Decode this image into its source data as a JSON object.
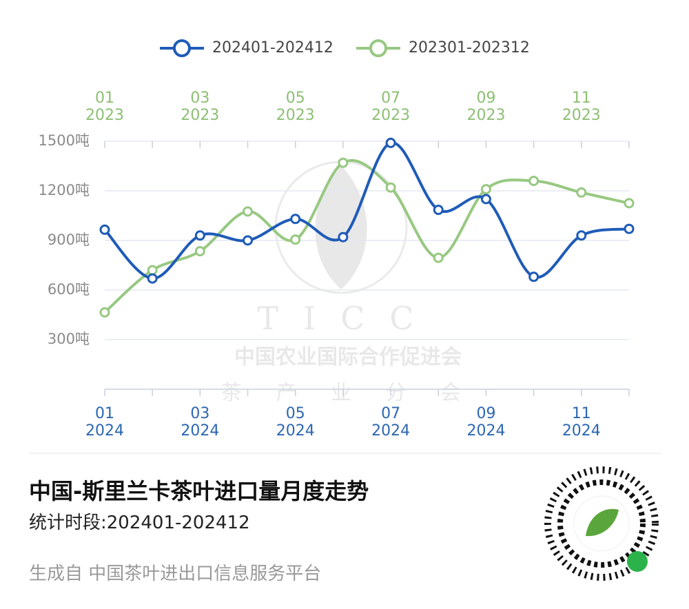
{
  "chart_data": {
    "type": "line",
    "categories": [
      "01\n2024",
      null,
      "03\n2024",
      null,
      "05\n2024",
      null,
      "07\n2024",
      null,
      "09\n2024",
      null,
      "11\n2024",
      null
    ],
    "top_categories": [
      "01\n2023",
      null,
      "03\n2023",
      null,
      "05\n2023",
      null,
      "07\n2023",
      null,
      "09\n2023",
      null,
      "11\n2023",
      null
    ],
    "series": [
      {
        "name": "202401-202412",
        "color": "#1f5bb8",
        "x_axis": "bottom",
        "values": [
          965,
          670,
          930,
          900,
          1030,
          920,
          1490,
          1085,
          1150,
          680,
          930,
          970
        ]
      },
      {
        "name": "202301-202312",
        "color": "#98c882",
        "x_axis": "top",
        "values": [
          465,
          720,
          835,
          1075,
          905,
          1370,
          1220,
          795,
          1210,
          1260,
          1190,
          1125
        ]
      }
    ],
    "ylim": [
      0,
      1500
    ],
    "yticks": [
      {
        "value": 300,
        "label": "300吨"
      },
      {
        "value": 600,
        "label": "600吨"
      },
      {
        "value": 900,
        "label": "900吨"
      },
      {
        "value": 1200,
        "label": "1200吨"
      },
      {
        "value": 1500,
        "label": "1500吨"
      }
    ],
    "grid": true
  },
  "watermark": {
    "logo": "TICC",
    "line1": "中国农业国际合作促进会",
    "line2": "茶 产 业 分 会"
  },
  "title": "中国-斯里兰卡茶叶进口量月度走势",
  "subtitle": "统计时段:202401-202412",
  "footer": "生成自 中国茶叶进出口信息服务平台"
}
